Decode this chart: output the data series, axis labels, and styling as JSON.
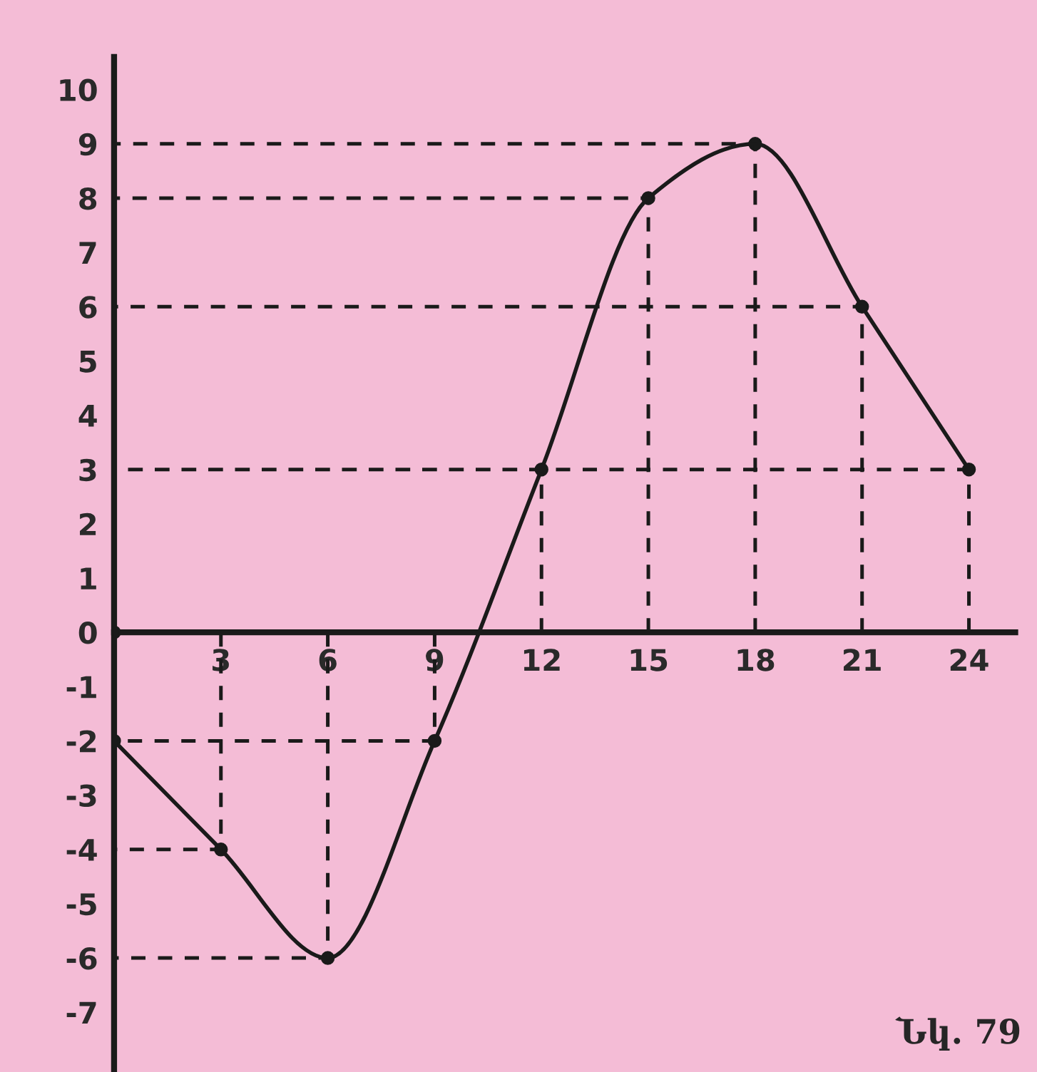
{
  "chart_data": {
    "type": "line",
    "x": [
      0,
      3,
      6,
      9,
      12,
      15,
      18,
      21,
      24
    ],
    "series": [
      {
        "color": "#1a1a1a",
        "values": [
          -2,
          -4,
          -6,
          -2,
          3,
          8,
          9,
          6,
          3
        ],
        "marker": "circle",
        "line_style": "solid"
      },
      {
        "type": "line",
        "color": "#1a1a1a",
        "line_style": "dashed",
        "marker": "none",
        "x": [
          3,
          3,
          0,
          null,
          6,
          6,
          0,
          null,
          9,
          9,
          0,
          null,
          12,
          12,
          0,
          null,
          15,
          15,
          0,
          null,
          18,
          18,
          0,
          null,
          21,
          21,
          0,
          null,
          24,
          24,
          0
        ],
        "values": [
          0,
          -4,
          -4,
          null,
          0,
          -6,
          -6,
          null,
          0,
          -2,
          -2,
          null,
          0,
          3,
          3,
          null,
          0,
          8,
          8,
          null,
          0,
          9,
          9,
          null,
          0,
          6,
          6,
          null,
          0,
          3,
          3
        ]
      },
      {
        "type": "scatter",
        "color": "#1a1a1a",
        "marker": "circle",
        "x": [
          0
        ],
        "values": [
          0
        ]
      }
    ],
    "xlim": [
      0,
      25.3
    ],
    "ylim": [
      -8.1,
      10.6
    ],
    "xticks": [
      3,
      6,
      9,
      12,
      15,
      18,
      21,
      24
    ],
    "yticks": [
      -7,
      -6,
      -5,
      -4,
      -3,
      -2,
      -1,
      0,
      1,
      2,
      3,
      4,
      5,
      6,
      7,
      8,
      9,
      10
    ],
    "grid": false,
    "legend": false,
    "annotations": [
      "Նկ. 79"
    ]
  }
}
